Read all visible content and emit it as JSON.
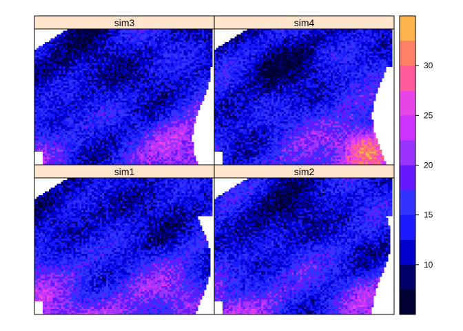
{
  "chart_data": {
    "type": "heatmap",
    "layout": "2x2 lattice (levelplot)",
    "panels": [
      {
        "name": "sim3",
        "row": "top",
        "col": "left",
        "seed": 3
      },
      {
        "name": "sim4",
        "row": "top",
        "col": "right",
        "seed": 4
      },
      {
        "name": "sim1",
        "row": "bottom",
        "col": "left",
        "seed": 1
      },
      {
        "name": "sim2",
        "row": "bottom",
        "col": "right",
        "seed": 2
      }
    ],
    "colorbar": {
      "range": [
        5,
        35
      ],
      "ticks": [
        10,
        15,
        20,
        25,
        30
      ],
      "tick_labels": [
        "10",
        "15",
        "20",
        "25",
        "30"
      ],
      "breaks": [
        5,
        7.5,
        10,
        12.5,
        15,
        17.5,
        20,
        22.5,
        25,
        27.5,
        30,
        32.5,
        35
      ],
      "colors": [
        "#000033",
        "#000066",
        "#0000CC",
        "#1A1AFF",
        "#3333FF",
        "#6619FF",
        "#9933FF",
        "#CC33FF",
        "#E646E6",
        "#FF5A99",
        "#FF8066",
        "#FFB34D",
        "#FFFF4D"
      ]
    },
    "strip_background": "#FFE5CC",
    "grid": false,
    "legend_position": "right"
  }
}
